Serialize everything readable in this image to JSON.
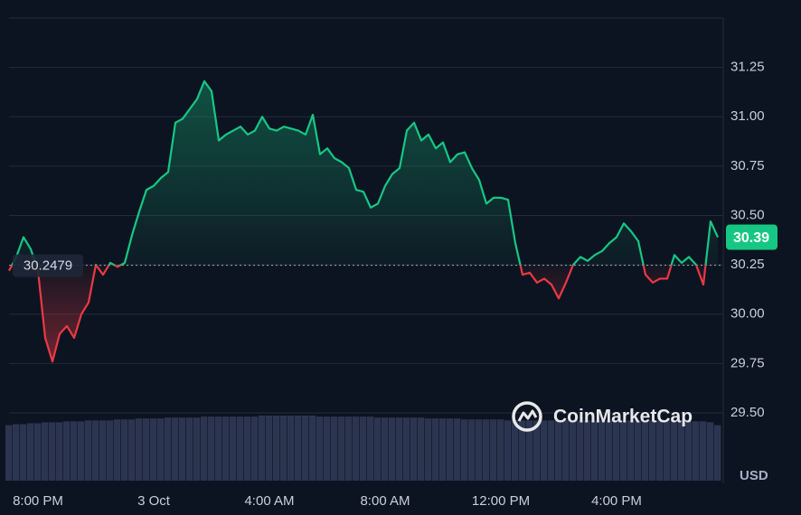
{
  "chart_data": {
    "type": "line",
    "categories": [
      null,
      null,
      null,
      null,
      "8:00 PM",
      null,
      null,
      null,
      null,
      null,
      null,
      null,
      null,
      null,
      null,
      null,
      null,
      null,
      null,
      null,
      "3 Oct",
      null,
      null,
      null,
      null,
      null,
      null,
      null,
      null,
      null,
      null,
      null,
      null,
      null,
      null,
      null,
      "4:00 AM",
      null,
      null,
      null,
      null,
      null,
      null,
      null,
      null,
      null,
      null,
      null,
      null,
      null,
      null,
      null,
      "8:00 AM",
      null,
      null,
      null,
      null,
      null,
      null,
      null,
      null,
      null,
      null,
      null,
      null,
      null,
      null,
      null,
      "12:00 PM",
      null,
      null,
      null,
      null,
      null,
      null,
      null,
      null,
      null,
      null,
      null,
      null,
      null,
      null,
      null,
      "4:00 PM",
      null,
      null,
      null,
      null,
      null,
      null,
      null,
      null,
      null,
      null,
      null,
      null,
      null,
      null
    ],
    "values": [
      30.22,
      30.29,
      30.39,
      30.33,
      30.22,
      29.88,
      29.76,
      29.9,
      29.94,
      29.88,
      30.0,
      30.06,
      30.25,
      30.2,
      30.26,
      30.24,
      30.26,
      30.4,
      30.52,
      30.63,
      30.65,
      30.69,
      30.72,
      30.97,
      30.99,
      31.04,
      31.09,
      31.18,
      31.13,
      30.88,
      30.91,
      30.93,
      30.95,
      30.91,
      30.93,
      31.0,
      30.94,
      30.93,
      30.95,
      30.94,
      30.93,
      30.91,
      31.01,
      30.81,
      30.84,
      30.79,
      30.77,
      30.74,
      30.63,
      30.62,
      30.54,
      30.56,
      30.65,
      30.71,
      30.74,
      30.93,
      30.97,
      30.88,
      30.91,
      30.84,
      30.87,
      30.77,
      30.81,
      30.82,
      30.74,
      30.68,
      30.56,
      30.59,
      30.59,
      30.58,
      30.36,
      30.2,
      30.21,
      30.16,
      30.18,
      30.15,
      30.08,
      30.16,
      30.25,
      30.29,
      30.27,
      30.3,
      30.32,
      30.36,
      30.39,
      30.46,
      30.42,
      30.37,
      30.2,
      30.16,
      30.18,
      30.18,
      30.3,
      30.26,
      30.29,
      30.25,
      30.15,
      30.47,
      30.39
    ],
    "volume": [
      58,
      59,
      59,
      60,
      60,
      61,
      61,
      61,
      62,
      62,
      62,
      63,
      63,
      63,
      63,
      64,
      64,
      64,
      65,
      65,
      65,
      65,
      66,
      66,
      66,
      66,
      66,
      67,
      67,
      67,
      67,
      67,
      67,
      67,
      67,
      68,
      68,
      68,
      68,
      68,
      68,
      68,
      68,
      67,
      67,
      67,
      67,
      67,
      67,
      67,
      67,
      66,
      66,
      66,
      66,
      66,
      66,
      66,
      65,
      65,
      65,
      65,
      65,
      64,
      64,
      64,
      64,
      64,
      64,
      63,
      63,
      63,
      63,
      63,
      63,
      63,
      63,
      63,
      63,
      63,
      63,
      63,
      63,
      63,
      63,
      63,
      63,
      63,
      63,
      63,
      63,
      63,
      63,
      63,
      62,
      62,
      62,
      61,
      58
    ],
    "baseline": 30.2479,
    "up_color": "#16c784",
    "down_color": "#ea3943",
    "volume_color": "#2c3550",
    "ylim": [
      29.5,
      31.5
    ],
    "yticks": [
      {
        "value": 29.5,
        "label": "29.50"
      },
      29.75,
      {
        "value": 30.0,
        "label": "30.00"
      },
      30.25,
      {
        "value": 30.5,
        "label": "30.50"
      },
      30.75,
      {
        "value": 31.0,
        "label": "31.00"
      },
      31.25
    ],
    "grid": true,
    "currency": "USD",
    "watermark": "CoinMarketCap"
  }
}
